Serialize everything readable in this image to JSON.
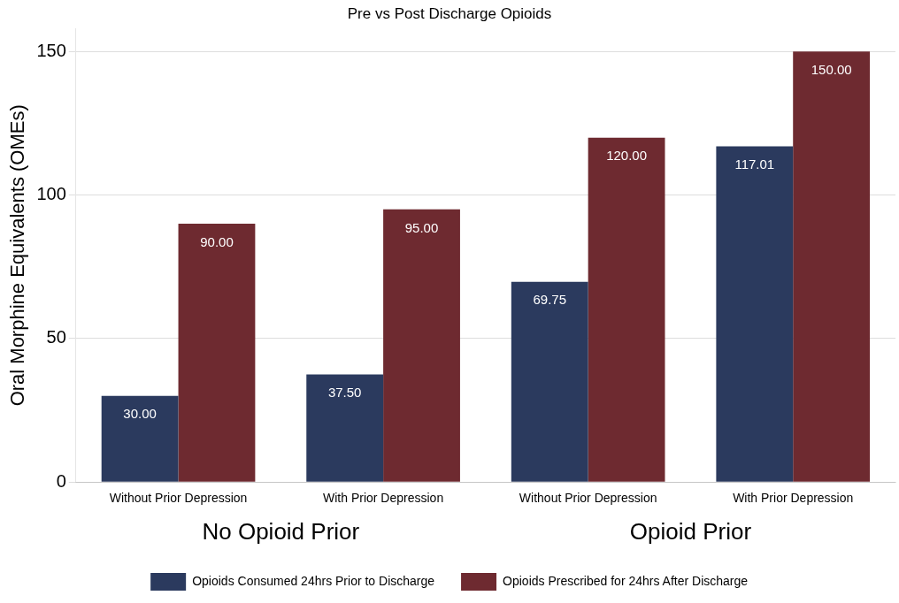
{
  "chart_data": {
    "type": "bar",
    "title": "Pre vs Post Discharge Opioids",
    "ylabel": "Oral Morphine Equivalents (OMEs)",
    "categories": [
      "Without Prior Depression",
      "With Prior Depression",
      "Without Prior Depression",
      "With Prior Depression"
    ],
    "series": [
      {
        "name": "Opioids Consumed 24hrs Prior to Discharge",
        "color": "#2b3a5e",
        "values": [
          30.0,
          37.5,
          69.75,
          117.01
        ]
      },
      {
        "name": "Opioids Prescribed for 24hrs After Discharge",
        "color": "#6e2a30",
        "values": [
          90.0,
          95.0,
          120.0,
          150.0
        ]
      }
    ],
    "value_labels": [
      [
        "30.00",
        "37.50",
        "69.75",
        "117.01"
      ],
      [
        "90.00",
        "95.00",
        "120.00",
        "150.00"
      ]
    ],
    "annotations": [
      "No Opioid Prior",
      "Opioid Prior"
    ],
    "ylim": [
      0,
      158
    ],
    "yticks": [
      0,
      50,
      100,
      150
    ],
    "grid": "y",
    "legend": "bottom"
  }
}
